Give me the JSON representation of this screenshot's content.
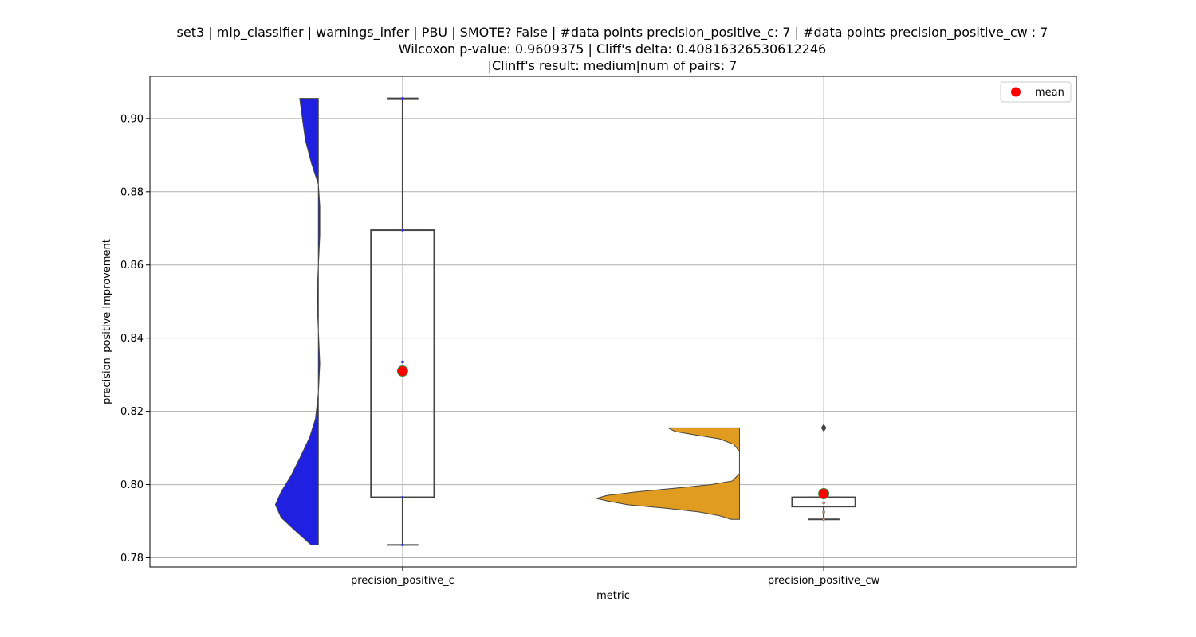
{
  "chart_data": {
    "type": "violin-box",
    "title_lines": [
      "set3 | mlp_classifier | warnings_infer | PBU | SMOTE? False | #data points precision_positive_c: 7 | #data points precision_positive_cw : 7",
      "Wilcoxon p-value: 0.9609375 | Cliff's delta: 0.40816326530612246",
      "|Clinff's result: medium|num of pairs: 7"
    ],
    "xlabel": "metric",
    "ylabel": "precision_positive Improvement",
    "categories": [
      "precision_positive_c",
      "precision_positive_cw"
    ],
    "ylim": [
      0.7775,
      0.9115
    ],
    "yticks": [
      0.78,
      0.8,
      0.82,
      0.84,
      0.86,
      0.88,
      0.9
    ],
    "grid": true,
    "legend": {
      "position": "top-right",
      "entries": [
        {
          "label": "mean",
          "color": "#ff0000"
        }
      ]
    },
    "series": [
      {
        "category": "precision_positive_c",
        "violin_color": "#2020e0",
        "violin_side": "left",
        "violin_profile": [
          [
            0.7835,
            0.05
          ],
          [
            0.787,
            0.15
          ],
          [
            0.791,
            0.26
          ],
          [
            0.7945,
            0.3
          ],
          [
            0.798,
            0.26
          ],
          [
            0.8025,
            0.19
          ],
          [
            0.808,
            0.12
          ],
          [
            0.813,
            0.06
          ],
          [
            0.818,
            0.02
          ],
          [
            0.825,
            0.0
          ],
          [
            0.833,
            -0.01
          ],
          [
            0.842,
            0.0
          ],
          [
            0.851,
            0.01
          ],
          [
            0.86,
            0.0
          ],
          [
            0.868,
            -0.01
          ],
          [
            0.876,
            -0.01
          ],
          [
            0.882,
            0.0
          ],
          [
            0.888,
            0.05
          ],
          [
            0.894,
            0.09
          ],
          [
            0.8995,
            0.11
          ],
          [
            0.9055,
            0.13
          ]
        ],
        "box": {
          "q1": 0.7965,
          "median": 0.7965,
          "q3": 0.8695,
          "whisker_low": 0.7835,
          "whisker_high": 0.9055
        },
        "mean": 0.831,
        "points": [
          0.7835,
          0.7965,
          0.8335,
          0.8695,
          0.9055
        ]
      },
      {
        "category": "precision_positive_cw",
        "violin_color": "#e09c20",
        "violin_side": "right",
        "violin_profile": [
          [
            0.7905,
            0.06
          ],
          [
            0.7915,
            0.14
          ],
          [
            0.7925,
            0.28
          ],
          [
            0.7935,
            0.5
          ],
          [
            0.7945,
            0.78
          ],
          [
            0.7955,
            0.92
          ],
          [
            0.7962,
            1.0
          ],
          [
            0.797,
            0.93
          ],
          [
            0.798,
            0.72
          ],
          [
            0.799,
            0.45
          ],
          [
            0.8,
            0.2
          ],
          [
            0.801,
            0.05
          ],
          [
            0.803,
            0.0
          ],
          [
            0.806,
            0.0
          ],
          [
            0.809,
            0.0
          ],
          [
            0.811,
            0.04
          ],
          [
            0.8125,
            0.14
          ],
          [
            0.8135,
            0.3
          ],
          [
            0.8145,
            0.45
          ],
          [
            0.8155,
            0.5
          ]
        ],
        "box": {
          "q1": 0.794,
          "median": 0.7965,
          "q3": 0.7965,
          "whisker_low": 0.7905,
          "whisker_high": 0.7965
        },
        "mean": 0.7975,
        "outliers": [
          0.8155
        ],
        "points": [
          0.7905,
          0.7925,
          0.795,
          0.7965
        ]
      }
    ]
  }
}
